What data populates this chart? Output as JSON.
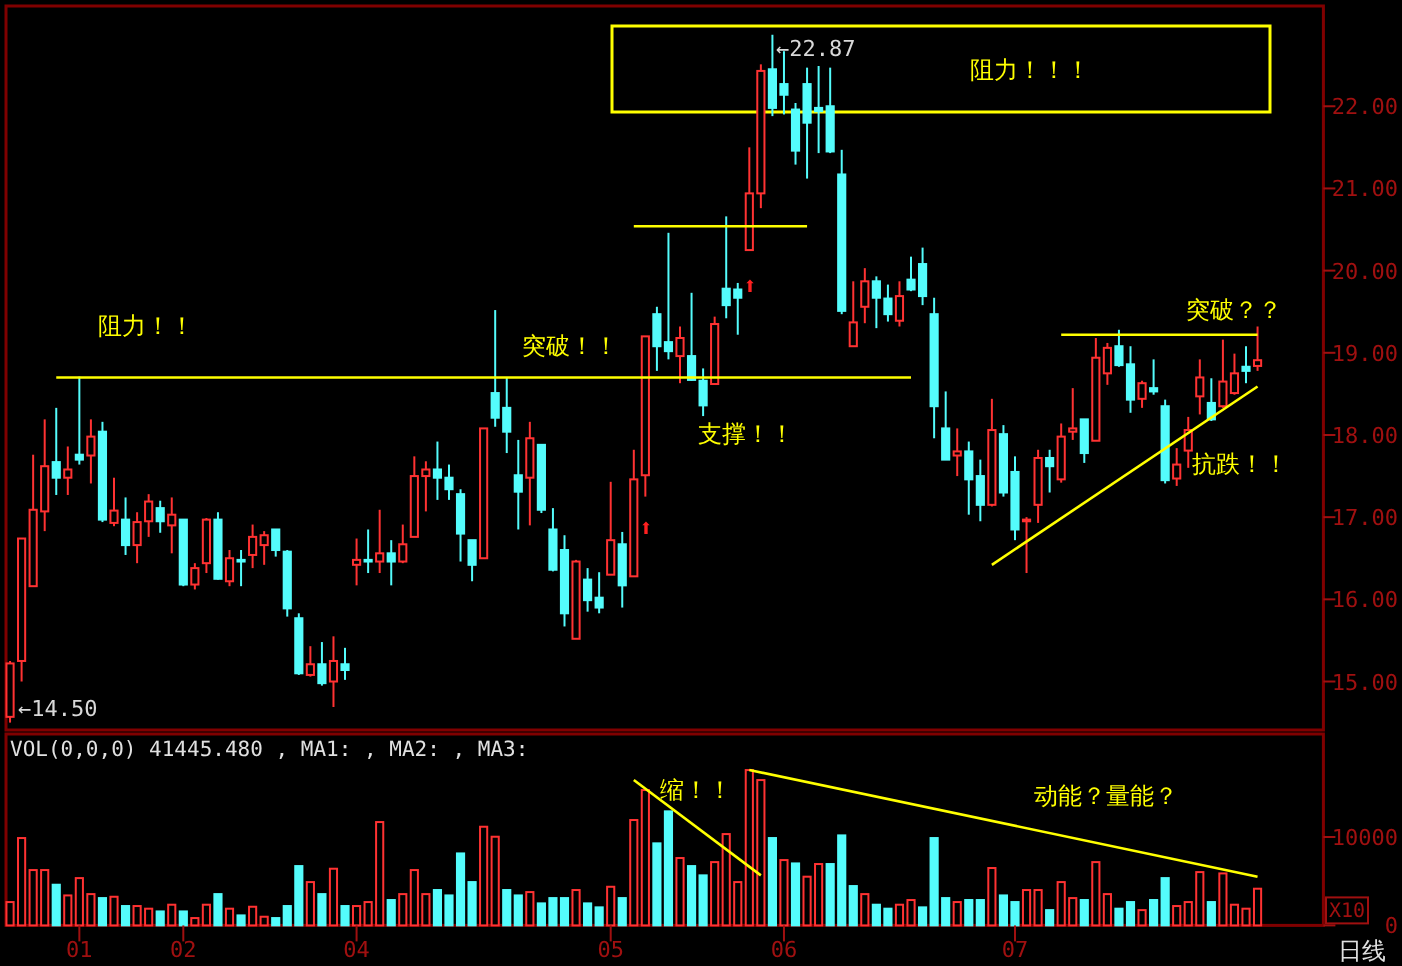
{
  "chart_data": [
    {
      "type": "candlestick",
      "tick_labels": "y",
      "ylim": [
        14.41,
        23.22
      ],
      "yticks": [
        {
          "value": 15,
          "label": "15.00"
        },
        {
          "value": 16,
          "label": "16.00"
        },
        {
          "value": 17,
          "label": "17.00"
        },
        {
          "value": 18,
          "label": "18.00"
        },
        {
          "value": 19,
          "label": "19.00"
        },
        {
          "value": 20,
          "label": "20.00"
        },
        {
          "value": 21,
          "label": "21.00"
        },
        {
          "value": 22,
          "label": "22.00"
        }
      ],
      "categories": [
        null,
        null,
        null,
        null,
        null,
        null,
        "01",
        null,
        null,
        null,
        null,
        null,
        null,
        null,
        null,
        "02",
        null,
        null,
        null,
        null,
        null,
        null,
        null,
        null,
        null,
        null,
        null,
        null,
        null,
        null,
        "04",
        null,
        null,
        null,
        null,
        null,
        null,
        null,
        null,
        null,
        null,
        null,
        null,
        null,
        null,
        null,
        null,
        null,
        null,
        null,
        null,
        null,
        "05",
        null,
        null,
        null,
        null,
        null,
        null,
        null,
        null,
        null,
        null,
        null,
        null,
        null,
        null,
        "06",
        null,
        null,
        null,
        null,
        null,
        null,
        null,
        null,
        null,
        null,
        null,
        null,
        null,
        null,
        null,
        null,
        null,
        null,
        null,
        "07",
        null,
        null,
        null,
        null,
        null,
        null,
        null,
        null,
        null,
        null,
        null,
        null,
        null,
        null,
        null,
        null,
        null,
        null,
        null,
        null,
        null
      ],
      "colors": [
        "#ff3232",
        "#ff3232",
        "#ff3232",
        "#ff3232",
        "#54fcfc",
        "#ff3232",
        "#54fcfc",
        "#ff3232",
        "#54fcfc",
        "#ff3232",
        "#54fcfc",
        "#ff3232",
        "#ff3232",
        "#54fcfc",
        "#ff3232",
        "#54fcfc",
        "#ff3232",
        "#ff3232",
        "#54fcfc",
        "#ff3232",
        "#54fcfc",
        "#ff3232",
        "#ff3232",
        "#54fcfc",
        "#54fcfc",
        "#54fcfc",
        "#ff3232",
        "#54fcfc",
        "#ff3232",
        "#54fcfc",
        "#ff3232",
        "#54fcfc",
        "#ff3232",
        "#54fcfc",
        "#ff3232",
        "#ff3232",
        "#ff3232",
        "#54fcfc",
        "#54fcfc",
        "#54fcfc",
        "#54fcfc",
        "#ff3232",
        "#54fcfc",
        "#54fcfc",
        "#54fcfc",
        "#ff3232",
        "#54fcfc",
        "#54fcfc",
        "#54fcfc",
        "#ff3232",
        "#54fcfc",
        "#54fcfc",
        "#ff3232",
        "#54fcfc",
        "#ff3232",
        "#ff3232",
        "#54fcfc",
        "#54fcfc",
        "#ff3232",
        "#54fcfc",
        "#54fcfc",
        "#ff3232",
        "#54fcfc",
        "#54fcfc",
        "#ff3232",
        "#ff3232",
        "#54fcfc",
        "#54fcfc",
        "#54fcfc",
        "#54fcfc",
        "#54fcfc",
        "#54fcfc",
        "#54fcfc",
        "#ff3232",
        "#ff3232",
        "#54fcfc",
        "#54fcfc",
        "#ff3232",
        "#54fcfc",
        "#54fcfc",
        "#54fcfc",
        "#54fcfc",
        "#ff3232",
        "#54fcfc",
        "#54fcfc",
        "#ff3232",
        "#54fcfc",
        "#54fcfc",
        "#ff3232",
        "#ff3232",
        "#54fcfc",
        "#ff3232",
        "#ff3232",
        "#54fcfc",
        "#ff3232",
        "#ff3232",
        "#54fcfc",
        "#54fcfc",
        "#ff3232",
        "#54fcfc",
        "#54fcfc",
        "#ff3232",
        "#ff3232",
        "#ff3232",
        "#54fcfc",
        "#ff3232",
        "#ff3232",
        "#54fcfc",
        "#ff3232"
      ],
      "ohlc": [
        [
          14.57,
          15.25,
          14.5,
          15.22
        ],
        [
          15.25,
          16.74,
          15.0,
          16.74
        ],
        [
          16.16,
          17.76,
          16.16,
          17.09
        ],
        [
          17.07,
          18.19,
          16.83,
          17.62
        ],
        [
          17.67,
          18.33,
          17.27,
          17.48
        ],
        [
          17.48,
          17.86,
          17.27,
          17.58
        ],
        [
          17.76,
          18.71,
          17.64,
          17.7
        ],
        [
          17.75,
          18.19,
          17.41,
          17.98
        ],
        [
          18.04,
          18.16,
          16.94,
          16.97
        ],
        [
          16.93,
          17.48,
          16.89,
          17.08
        ],
        [
          16.97,
          17.24,
          16.54,
          16.66
        ],
        [
          16.66,
          17.06,
          16.44,
          16.94
        ],
        [
          16.95,
          17.28,
          16.76,
          17.19
        ],
        [
          17.11,
          17.2,
          16.81,
          16.95
        ],
        [
          16.9,
          17.24,
          16.56,
          17.03
        ],
        [
          16.97,
          16.97,
          16.16,
          16.18
        ],
        [
          16.18,
          16.44,
          16.12,
          16.38
        ],
        [
          16.44,
          16.99,
          16.32,
          16.97
        ],
        [
          16.97,
          17.06,
          16.24,
          16.25
        ],
        [
          16.22,
          16.6,
          16.16,
          16.5
        ],
        [
          16.48,
          16.6,
          16.16,
          16.46
        ],
        [
          16.54,
          16.91,
          16.38,
          16.76
        ],
        [
          16.66,
          16.83,
          16.42,
          16.78
        ],
        [
          16.85,
          16.85,
          16.52,
          16.6
        ],
        [
          16.58,
          16.6,
          15.79,
          15.89
        ],
        [
          15.77,
          15.83,
          15.08,
          15.1
        ],
        [
          15.08,
          15.43,
          15.06,
          15.21
        ],
        [
          15.21,
          15.48,
          14.95,
          14.98
        ],
        [
          15.0,
          15.55,
          14.69,
          15.25
        ],
        [
          15.21,
          15.41,
          15.02,
          15.14
        ],
        [
          16.42,
          16.74,
          16.17,
          16.48
        ],
        [
          16.48,
          16.85,
          16.32,
          16.46
        ],
        [
          16.46,
          17.09,
          16.32,
          16.56
        ],
        [
          16.56,
          16.72,
          16.17,
          16.46
        ],
        [
          16.46,
          16.91,
          16.44,
          16.67
        ],
        [
          16.76,
          17.74,
          16.76,
          17.5
        ],
        [
          17.5,
          17.68,
          17.07,
          17.58
        ],
        [
          17.58,
          17.92,
          17.21,
          17.48
        ],
        [
          17.48,
          17.64,
          17.21,
          17.34
        ],
        [
          17.28,
          17.34,
          16.46,
          16.8
        ],
        [
          16.72,
          16.72,
          16.22,
          16.42
        ],
        [
          16.5,
          18.08,
          16.5,
          18.08
        ],
        [
          18.51,
          19.52,
          18.1,
          18.21
        ],
        [
          18.33,
          18.7,
          17.78,
          18.04
        ],
        [
          17.51,
          17.94,
          16.85,
          17.31
        ],
        [
          17.48,
          18.16,
          16.9,
          17.96
        ],
        [
          17.88,
          17.88,
          17.05,
          17.09
        ],
        [
          16.85,
          17.11,
          16.34,
          16.36
        ],
        [
          16.6,
          16.78,
          15.67,
          15.83
        ],
        [
          15.52,
          16.48,
          15.52,
          16.46
        ],
        [
          16.24,
          16.38,
          15.85,
          15.99
        ],
        [
          16.02,
          16.33,
          15.83,
          15.9
        ],
        [
          16.3,
          17.43,
          16.3,
          16.72
        ],
        [
          16.67,
          16.82,
          15.9,
          16.17
        ],
        [
          16.28,
          17.82,
          16.28,
          17.46
        ],
        [
          17.51,
          19.2,
          17.25,
          19.2
        ],
        [
          19.47,
          19.56,
          18.78,
          19.08
        ],
        [
          19.13,
          20.46,
          18.92,
          19.02
        ],
        [
          18.96,
          19.32,
          18.63,
          19.18
        ],
        [
          18.96,
          19.73,
          18.66,
          18.67
        ],
        [
          18.66,
          18.81,
          18.23,
          18.36
        ],
        [
          18.62,
          19.44,
          18.62,
          19.35
        ],
        [
          19.78,
          20.66,
          19.42,
          19.58
        ],
        [
          19.77,
          19.85,
          19.22,
          19.67
        ],
        [
          20.25,
          21.5,
          20.25,
          20.94
        ],
        [
          20.94,
          22.51,
          20.76,
          22.43
        ],
        [
          22.45,
          22.87,
          21.88,
          21.98
        ],
        [
          22.27,
          22.67,
          21.9,
          22.14
        ],
        [
          21.96,
          22.04,
          21.29,
          21.46
        ],
        [
          22.27,
          22.47,
          21.12,
          21.8
        ],
        [
          21.98,
          22.49,
          21.43,
          21.94
        ],
        [
          22.0,
          22.47,
          21.43,
          21.45
        ],
        [
          21.17,
          21.47,
          19.47,
          19.51
        ],
        [
          19.08,
          19.87,
          19.08,
          19.37
        ],
        [
          19.56,
          20.03,
          19.36,
          19.87
        ],
        [
          19.87,
          19.93,
          19.3,
          19.67
        ],
        [
          19.66,
          19.83,
          19.38,
          19.47
        ],
        [
          19.39,
          19.87,
          19.32,
          19.69
        ],
        [
          19.89,
          20.17,
          19.75,
          19.77
        ],
        [
          20.08,
          20.28,
          19.58,
          19.69
        ],
        [
          19.47,
          19.67,
          17.96,
          18.35
        ],
        [
          18.08,
          18.53,
          17.7,
          17.7
        ],
        [
          17.75,
          18.08,
          17.5,
          17.8
        ],
        [
          17.8,
          17.92,
          17.03,
          17.46
        ],
        [
          17.5,
          17.7,
          16.95,
          17.15
        ],
        [
          17.15,
          18.44,
          17.13,
          18.06
        ],
        [
          18.01,
          18.12,
          17.25,
          17.3
        ],
        [
          17.55,
          17.74,
          16.72,
          16.85
        ],
        [
          16.95,
          17.0,
          16.32,
          16.97
        ],
        [
          17.15,
          17.82,
          16.93,
          17.72
        ],
        [
          17.72,
          17.82,
          17.3,
          17.62
        ],
        [
          17.46,
          18.14,
          17.42,
          17.98
        ],
        [
          18.04,
          18.57,
          17.94,
          18.08
        ],
        [
          18.19,
          18.19,
          17.66,
          17.78
        ],
        [
          17.93,
          19.18,
          17.93,
          18.94
        ],
        [
          18.75,
          19.12,
          18.61,
          19.06
        ],
        [
          19.08,
          19.28,
          18.83,
          18.85
        ],
        [
          18.86,
          19.08,
          18.27,
          18.43
        ],
        [
          18.44,
          18.66,
          18.33,
          18.63
        ],
        [
          18.57,
          18.92,
          18.49,
          18.53
        ],
        [
          18.35,
          18.43,
          17.41,
          17.45
        ],
        [
          17.47,
          17.84,
          17.38,
          17.64
        ],
        [
          17.81,
          18.22,
          17.6,
          18.06
        ],
        [
          18.47,
          18.92,
          18.25,
          18.7
        ],
        [
          18.39,
          18.69,
          18.17,
          18.19
        ],
        [
          18.35,
          19.16,
          18.33,
          18.65
        ],
        [
          18.51,
          18.99,
          18.49,
          18.75
        ],
        [
          18.83,
          19.08,
          18.63,
          18.78
        ],
        [
          18.84,
          19.32,
          18.78,
          18.91
        ]
      ],
      "series": [
        {
          "type": "line",
          "color": "#ffff00",
          "values": [
            null,
            null,
            null,
            null,
            18.7,
            null,
            null,
            null,
            null,
            null,
            null,
            null,
            null,
            null,
            null,
            null,
            null,
            null,
            null,
            null,
            null,
            null,
            null,
            null,
            null,
            null,
            null,
            null,
            null,
            null,
            null,
            null,
            null,
            null,
            null,
            null,
            null,
            null,
            null,
            null,
            null,
            null,
            null,
            null,
            null,
            null,
            null,
            null,
            null,
            null,
            null,
            null,
            null,
            null,
            null,
            null,
            null,
            null,
            null,
            null,
            null,
            null,
            null,
            null,
            null,
            null,
            null,
            null,
            null,
            null,
            null,
            null,
            null,
            null,
            null,
            null,
            null,
            null,
            18.7,
            null,
            null,
            null,
            null,
            null,
            null,
            null,
            null,
            null,
            null,
            null,
            null,
            null,
            null,
            null,
            null,
            null,
            null,
            null,
            null,
            null,
            null,
            null,
            null,
            null,
            null,
            null,
            null,
            null,
            null
          ]
        },
        {
          "type": "line",
          "color": "#ffff00",
          "values": [
            null,
            null,
            null,
            null,
            null,
            null,
            null,
            null,
            null,
            null,
            null,
            null,
            null,
            null,
            null,
            null,
            null,
            null,
            null,
            null,
            null,
            null,
            null,
            null,
            null,
            null,
            null,
            null,
            null,
            null,
            null,
            null,
            null,
            null,
            null,
            null,
            null,
            null,
            null,
            null,
            null,
            null,
            null,
            null,
            null,
            null,
            null,
            null,
            null,
            null,
            null,
            null,
            null,
            null,
            20.54,
            null,
            null,
            null,
            null,
            null,
            null,
            null,
            null,
            null,
            null,
            null,
            null,
            null,
            null,
            20.54,
            null,
            null,
            null,
            null,
            null,
            null,
            null,
            null,
            null,
            null,
            null,
            null,
            null,
            null,
            null,
            null,
            null,
            null,
            null,
            null,
            null,
            null,
            null,
            null,
            null,
            null,
            null,
            null,
            null,
            null,
            null,
            null,
            null,
            null,
            null,
            null,
            null,
            null,
            null
          ]
        },
        {
          "type": "line",
          "color": "#ffff00",
          "values": [
            null,
            null,
            null,
            null,
            null,
            null,
            null,
            null,
            null,
            null,
            null,
            null,
            null,
            null,
            null,
            null,
            null,
            null,
            null,
            null,
            null,
            null,
            null,
            null,
            null,
            null,
            null,
            null,
            null,
            null,
            null,
            null,
            null,
            null,
            null,
            null,
            null,
            null,
            null,
            null,
            null,
            null,
            null,
            null,
            null,
            null,
            null,
            null,
            null,
            null,
            null,
            null,
            null,
            null,
            null,
            null,
            null,
            null,
            null,
            null,
            null,
            null,
            null,
            null,
            null,
            null,
            null,
            null,
            null,
            null,
            null,
            null,
            null,
            null,
            null,
            null,
            null,
            null,
            null,
            null,
            null,
            null,
            null,
            null,
            null,
            null,
            null,
            null,
            null,
            null,
            null,
            19.22,
            null,
            null,
            null,
            null,
            null,
            null,
            null,
            null,
            null,
            null,
            null,
            null,
            null,
            null,
            null,
            null,
            19.22
          ]
        },
        {
          "type": "line",
          "color": "#ffff00",
          "values": [
            null,
            null,
            null,
            null,
            null,
            null,
            null,
            null,
            null,
            null,
            null,
            null,
            null,
            null,
            null,
            null,
            null,
            null,
            null,
            null,
            null,
            null,
            null,
            null,
            null,
            null,
            null,
            null,
            null,
            null,
            null,
            null,
            null,
            null,
            null,
            null,
            null,
            null,
            null,
            null,
            null,
            null,
            null,
            null,
            null,
            null,
            null,
            null,
            null,
            null,
            null,
            null,
            null,
            null,
            null,
            null,
            null,
            null,
            null,
            null,
            null,
            null,
            null,
            null,
            null,
            null,
            null,
            null,
            null,
            null,
            null,
            null,
            null,
            null,
            null,
            null,
            null,
            null,
            null,
            null,
            null,
            null,
            null,
            null,
            null,
            16.42,
            null,
            null,
            null,
            null,
            null,
            null,
            null,
            null,
            null,
            null,
            null,
            null,
            null,
            null,
            null,
            null,
            null,
            null,
            null,
            null,
            null,
            null,
            18.59
          ]
        }
      ],
      "annotations": [
        "←22.87",
        "←14.50",
        "阻力！！",
        "突破！！",
        "支撑！！",
        "阻力！！！",
        "突破？？",
        "抗跌！！",
        "⬆",
        "⬆"
      ]
    },
    {
      "type": "bar",
      "title": "VOL(0,0,0) 41445.480 , MA1: , MA2: , MA3:",
      "xlabel": "日线",
      "ylabel": "X10",
      "ylim": [
        0,
        21650
      ],
      "yticks": [
        0,
        10000
      ],
      "categories": [
        null,
        null,
        null,
        null,
        null,
        null,
        "01",
        null,
        null,
        null,
        null,
        null,
        null,
        null,
        null,
        "02",
        null,
        null,
        null,
        null,
        null,
        null,
        null,
        null,
        null,
        null,
        null,
        null,
        null,
        null,
        "04",
        null,
        null,
        null,
        null,
        null,
        null,
        null,
        null,
        null,
        null,
        null,
        null,
        null,
        null,
        null,
        null,
        null,
        null,
        null,
        null,
        null,
        "05",
        null,
        null,
        null,
        null,
        null,
        null,
        null,
        null,
        null,
        null,
        null,
        null,
        null,
        null,
        "06",
        null,
        null,
        null,
        null,
        null,
        null,
        null,
        null,
        null,
        null,
        null,
        null,
        null,
        null,
        null,
        null,
        null,
        null,
        null,
        "07",
        null,
        null,
        null,
        null,
        null,
        null,
        null,
        null,
        null,
        null,
        null,
        null,
        null,
        null,
        null,
        null,
        null,
        null,
        null,
        null,
        null
      ],
      "series": [
        {
          "type": "bar",
          "values": [
            2640,
            9880,
            6260,
            6260,
            4600,
            3390,
            5350,
            3540,
            3090,
            3240,
            2190,
            2190,
            1890,
            1580,
            2340,
            1580,
            830,
            2340,
            3540,
            1890,
            1130,
            2110,
            980,
            830,
            2190,
            6710,
            4900,
            3540,
            6410,
            2190,
            2190,
            2640,
            11690,
            2870,
            3540,
            6260,
            3540,
            4000,
            3390,
            8140,
            4900,
            11160,
            10030,
            4000,
            3390,
            3770,
            2490,
            3090,
            3090,
            4000,
            2490,
            2040,
            4370,
            3090,
            11920,
            15310,
            9280,
            12900,
            7620,
            6710,
            5660,
            7160,
            10330,
            4900,
            17570,
            16440,
            9880,
            7390,
            7010,
            5510,
            6940,
            6940,
            10180,
            4450,
            3540,
            2340,
            1890,
            2340,
            2870,
            2040,
            9880,
            3090,
            2640,
            2870,
            2870,
            6490,
            3390,
            2640,
            4000,
            4000,
            1730,
            4900,
            3090,
            2870,
            7160,
            3540,
            1890,
            2640,
            1730,
            2870,
            5350,
            2190,
            2640,
            6030,
            2640,
            5880,
            2340,
            1890,
            4150
          ],
          "colors": [
            "#ff3232",
            "#ff3232",
            "#ff3232",
            "#ff3232",
            "#54fcfc",
            "#ff3232",
            "#ff3232",
            "#ff3232",
            "#54fcfc",
            "#ff3232",
            "#54fcfc",
            "#ff3232",
            "#ff3232",
            "#54fcfc",
            "#ff3232",
            "#54fcfc",
            "#ff3232",
            "#ff3232",
            "#54fcfc",
            "#ff3232",
            "#54fcfc",
            "#ff3232",
            "#ff3232",
            "#54fcfc",
            "#54fcfc",
            "#54fcfc",
            "#ff3232",
            "#54fcfc",
            "#ff3232",
            "#54fcfc",
            "#ff3232",
            "#ff3232",
            "#ff3232",
            "#54fcfc",
            "#ff3232",
            "#ff3232",
            "#ff3232",
            "#54fcfc",
            "#54fcfc",
            "#54fcfc",
            "#54fcfc",
            "#ff3232",
            "#ff3232",
            "#54fcfc",
            "#54fcfc",
            "#ff3232",
            "#54fcfc",
            "#54fcfc",
            "#54fcfc",
            "#ff3232",
            "#54fcfc",
            "#54fcfc",
            "#ff3232",
            "#54fcfc",
            "#ff3232",
            "#ff3232",
            "#54fcfc",
            "#54fcfc",
            "#ff3232",
            "#54fcfc",
            "#54fcfc",
            "#ff3232",
            "#ff3232",
            "#ff3232",
            "#ff3232",
            "#ff3232",
            "#54fcfc",
            "#ff3232",
            "#54fcfc",
            "#ff3232",
            "#ff3232",
            "#54fcfc",
            "#54fcfc",
            "#54fcfc",
            "#ff3232",
            "#54fcfc",
            "#54fcfc",
            "#ff3232",
            "#ff3232",
            "#54fcfc",
            "#54fcfc",
            "#54fcfc",
            "#ff3232",
            "#54fcfc",
            "#54fcfc",
            "#ff3232",
            "#54fcfc",
            "#54fcfc",
            "#ff3232",
            "#ff3232",
            "#54fcfc",
            "#ff3232",
            "#ff3232",
            "#54fcfc",
            "#ff3232",
            "#ff3232",
            "#54fcfc",
            "#54fcfc",
            "#ff3232",
            "#54fcfc",
            "#54fcfc",
            "#ff3232",
            "#ff3232",
            "#ff3232",
            "#54fcfc",
            "#ff3232",
            "#ff3232",
            "#ff3232",
            "#ff3232"
          ]
        },
        {
          "type": "line",
          "color": "#ffff00",
          "values": [
            null,
            null,
            null,
            null,
            null,
            null,
            null,
            null,
            null,
            null,
            null,
            null,
            null,
            null,
            null,
            null,
            null,
            null,
            null,
            null,
            null,
            null,
            null,
            null,
            null,
            null,
            null,
            null,
            null,
            null,
            null,
            null,
            null,
            null,
            null,
            null,
            null,
            null,
            null,
            null,
            null,
            null,
            null,
            null,
            null,
            null,
            null,
            null,
            null,
            null,
            null,
            null,
            null,
            null,
            16450,
            null,
            null,
            null,
            null,
            null,
            null,
            null,
            null,
            null,
            null,
            5660,
            null,
            null,
            null,
            null,
            null,
            null,
            null,
            null,
            null,
            null,
            null,
            null,
            null,
            null,
            null,
            null,
            null,
            null,
            null,
            null,
            null,
            null,
            null,
            null,
            null,
            null,
            null,
            null,
            null,
            null,
            null,
            null,
            null,
            null,
            null,
            null,
            null,
            null,
            null,
            null,
            null,
            null,
            null
          ]
        },
        {
          "type": "line",
          "color": "#ffff00",
          "values": [
            null,
            null,
            null,
            null,
            null,
            null,
            null,
            null,
            null,
            null,
            null,
            null,
            null,
            null,
            null,
            null,
            null,
            null,
            null,
            null,
            null,
            null,
            null,
            null,
            null,
            null,
            null,
            null,
            null,
            null,
            null,
            null,
            null,
            null,
            null,
            null,
            null,
            null,
            null,
            null,
            null,
            null,
            null,
            null,
            null,
            null,
            null,
            null,
            null,
            null,
            null,
            null,
            null,
            null,
            null,
            null,
            null,
            null,
            null,
            null,
            null,
            null,
            null,
            null,
            17580,
            null,
            null,
            null,
            null,
            null,
            null,
            null,
            null,
            null,
            null,
            null,
            null,
            null,
            null,
            null,
            null,
            null,
            null,
            null,
            null,
            null,
            null,
            null,
            null,
            null,
            null,
            null,
            null,
            null,
            null,
            null,
            null,
            null,
            null,
            null,
            null,
            null,
            null,
            null,
            null,
            null,
            null,
            null,
            5510
          ]
        }
      ],
      "annotations": [
        "缩！！",
        "动能？量能？"
      ]
    }
  ]
}
